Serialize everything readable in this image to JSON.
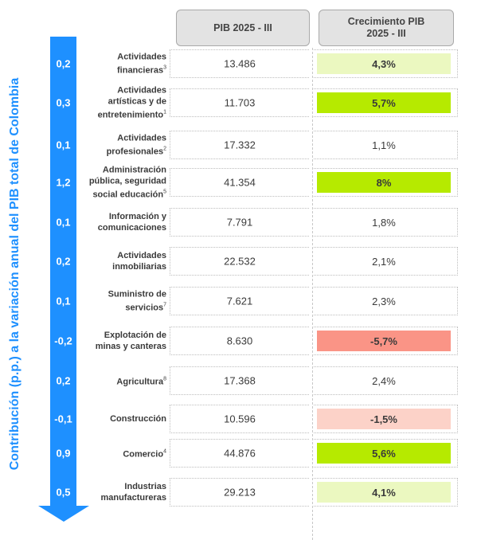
{
  "headers": {
    "pib": "PIB 2025 - III",
    "crecimiento_line1": "Crecimiento PIB",
    "crecimiento_line2": "2025 - III"
  },
  "axis_title": "Contribución (p.p.) a la variación anual del PIB total de Colombia",
  "colors": {
    "arrow": "#1e90ff",
    "light_green": "#ebf8c0",
    "bright_green": "#b6ea00",
    "red": "#fa9486",
    "light_red": "#fcd2c8"
  },
  "rows": [
    {
      "label_lines": [
        "Actividades",
        "financieras"
      ],
      "sup": "3",
      "contribution": "0,2",
      "pib": "13.486",
      "growth": "4,3%",
      "highlight": "light_green"
    },
    {
      "label_lines": [
        "Actividades",
        "artísticas y de",
        "entretenimiento"
      ],
      "sup": "1",
      "contribution": "0,3",
      "pib": "11.703",
      "growth": "5,7%",
      "highlight": "bright_green"
    },
    {
      "label_lines": [
        "Actividades",
        "profesionales"
      ],
      "sup": "2",
      "contribution": "0,1",
      "pib": "17.332",
      "growth": "1,1%",
      "highlight": "none"
    },
    {
      "label_lines": [
        "Administración",
        "pública, seguridad",
        "social educación"
      ],
      "sup": "5",
      "contribution": "1,2",
      "pib": "41.354",
      "growth": "8%",
      "highlight": "bright_green"
    },
    {
      "label_lines": [
        "Información y",
        "comunicaciones"
      ],
      "sup": "",
      "contribution": "0,1",
      "pib": "7.791",
      "growth": "1,8%",
      "highlight": "none"
    },
    {
      "label_lines": [
        "Actividades",
        "inmobiliarias"
      ],
      "sup": "",
      "contribution": "0,2",
      "pib": "22.532",
      "growth": "2,1%",
      "highlight": "none"
    },
    {
      "label_lines": [
        "Suministro de",
        "servicios"
      ],
      "sup": "7",
      "contribution": "0,1",
      "pib": "7.621",
      "growth": "2,3%",
      "highlight": "none"
    },
    {
      "label_lines": [
        "Explotación de",
        "minas y canteras"
      ],
      "sup": "",
      "contribution": "-0,2",
      "pib": "8.630",
      "growth": "-5,7%",
      "highlight": "red"
    },
    {
      "label_lines": [
        "Agricultura"
      ],
      "sup": "8",
      "contribution": "0,2",
      "pib": "17.368",
      "growth": "2,4%",
      "highlight": "none"
    },
    {
      "label_lines": [
        "Construcción"
      ],
      "sup": "",
      "contribution": "-0,1",
      "pib": "10.596",
      "growth": "-1,5%",
      "highlight": "light_red"
    },
    {
      "label_lines": [
        "Comercio"
      ],
      "sup": "4",
      "contribution": "0,9",
      "pib": "44.876",
      "growth": "5,6%",
      "highlight": "bright_green"
    },
    {
      "label_lines": [
        "Industrias",
        "manufactureras"
      ],
      "sup": "",
      "contribution": "0,5",
      "pib": "29.213",
      "growth": "4,1%",
      "highlight": "light_green"
    }
  ]
}
